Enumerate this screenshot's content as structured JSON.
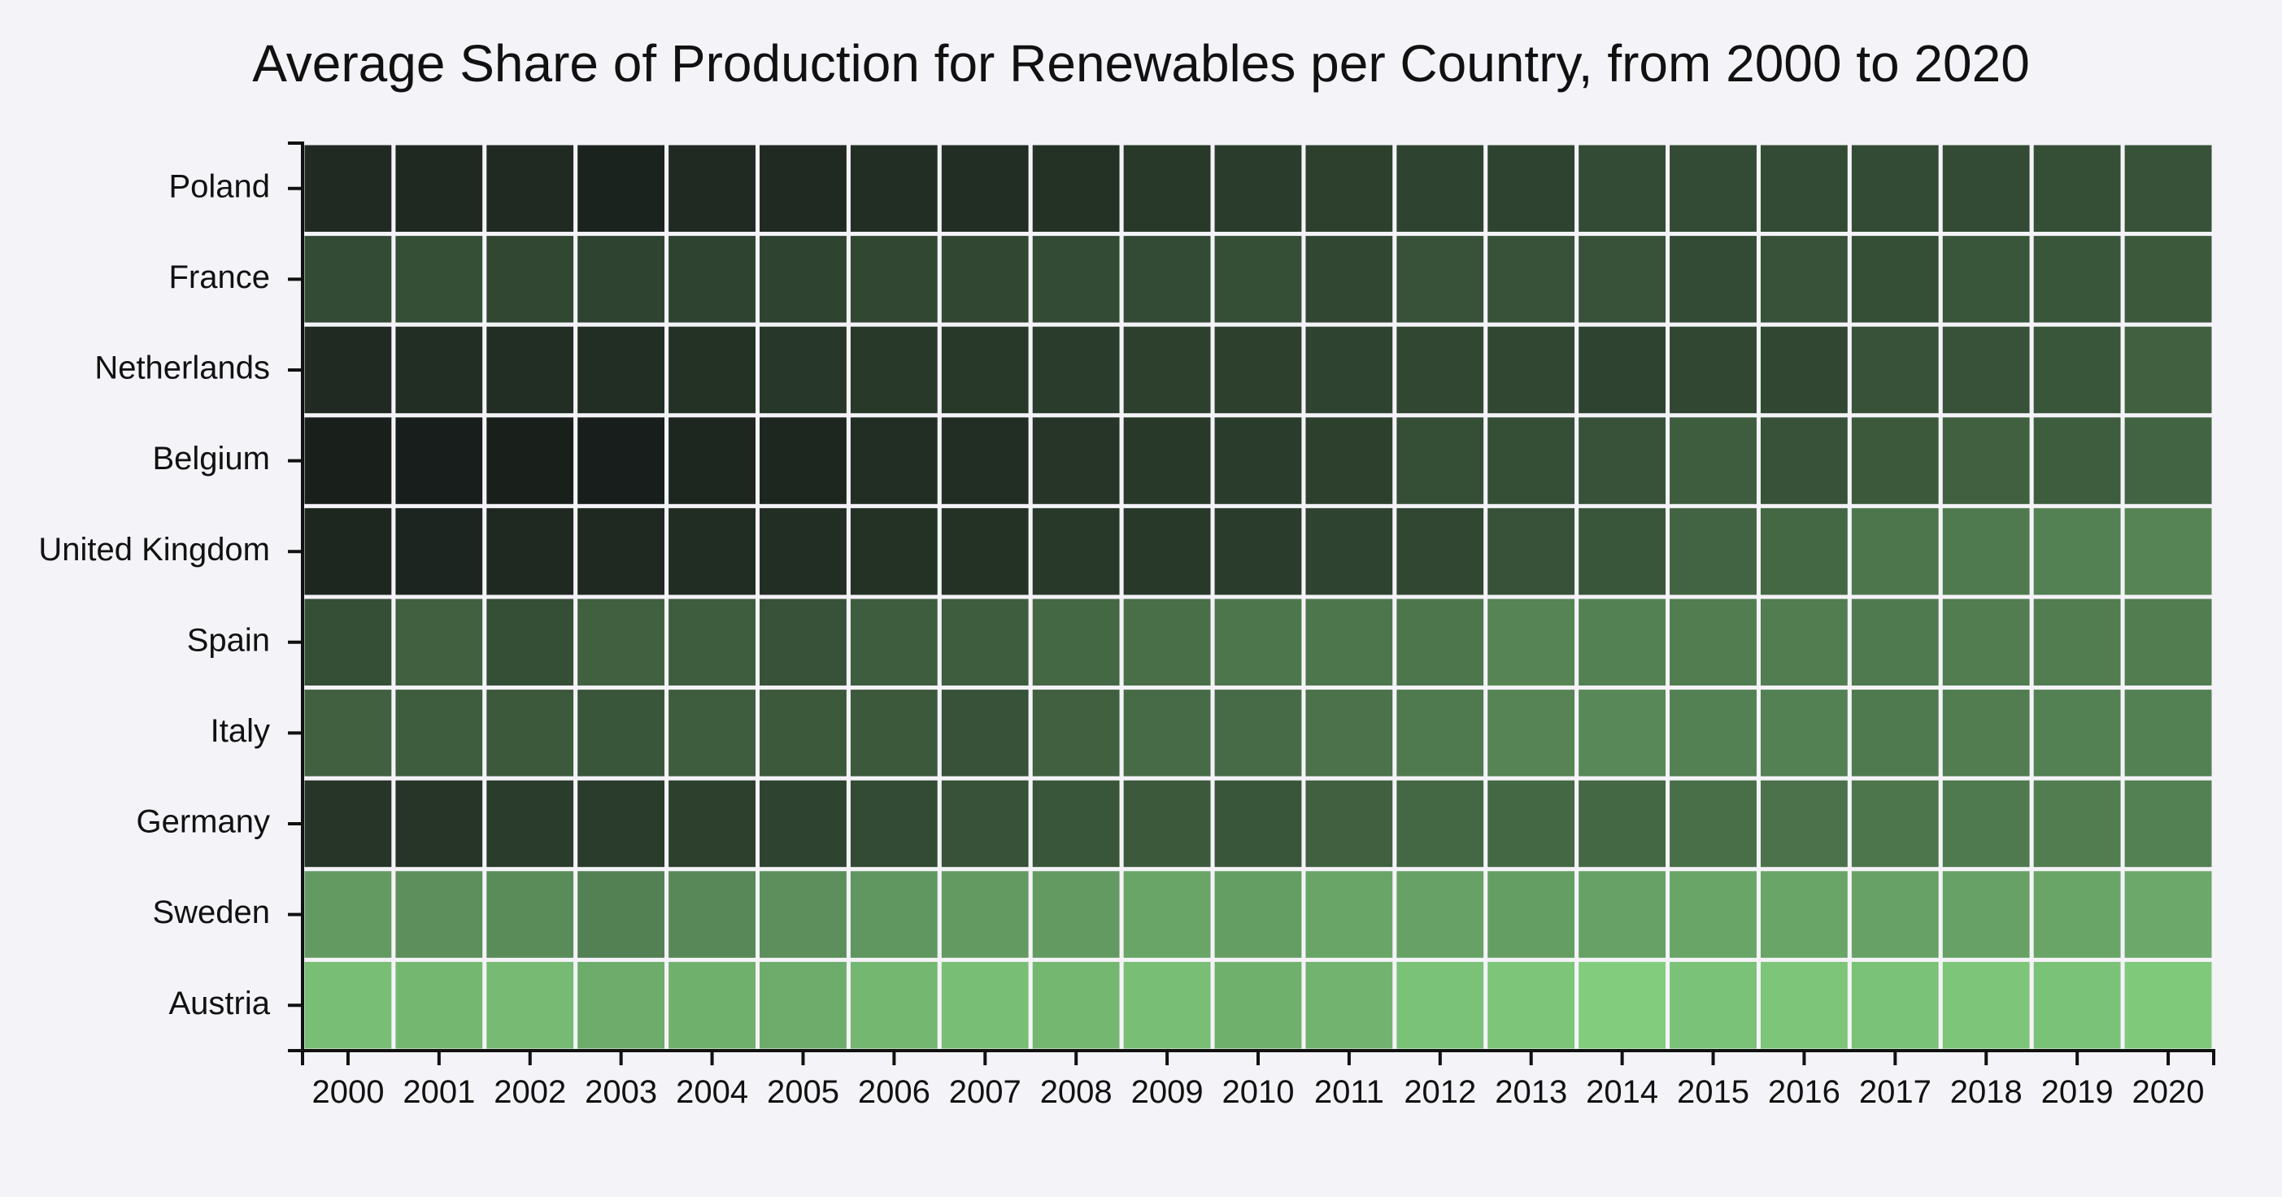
{
  "chart_data": {
    "type": "heatmap",
    "title": "Average Share of Production for Renewables per Country, from 2000 to 2020",
    "xlabel": "",
    "ylabel": "",
    "x": [
      "2000",
      "2001",
      "2002",
      "2003",
      "2004",
      "2005",
      "2006",
      "2007",
      "2008",
      "2009",
      "2010",
      "2011",
      "2012",
      "2013",
      "2014",
      "2015",
      "2016",
      "2017",
      "2018",
      "2019",
      "2020"
    ],
    "y": [
      "Poland",
      "France",
      "Netherlands",
      "Belgium",
      "United Kingdom",
      "Spain",
      "Italy",
      "Germany",
      "Sweden",
      "Austria"
    ],
    "color_scale": {
      "low": "#171c1a",
      "high": "#83d07f"
    },
    "values": [
      [
        0.08,
        0.07,
        0.08,
        0.04,
        0.08,
        0.08,
        0.1,
        0.1,
        0.12,
        0.16,
        0.18,
        0.2,
        0.22,
        0.22,
        0.26,
        0.26,
        0.26,
        0.26,
        0.26,
        0.28,
        0.3
      ],
      [
        0.26,
        0.28,
        0.24,
        0.22,
        0.22,
        0.22,
        0.24,
        0.24,
        0.26,
        0.26,
        0.28,
        0.24,
        0.3,
        0.3,
        0.3,
        0.26,
        0.3,
        0.28,
        0.32,
        0.32,
        0.34
      ],
      [
        0.08,
        0.1,
        0.1,
        0.1,
        0.12,
        0.15,
        0.16,
        0.16,
        0.18,
        0.2,
        0.2,
        0.22,
        0.24,
        0.24,
        0.22,
        0.24,
        0.24,
        0.3,
        0.3,
        0.32,
        0.38
      ],
      [
        0.02,
        0.01,
        0.02,
        0.01,
        0.06,
        0.06,
        0.1,
        0.1,
        0.14,
        0.16,
        0.18,
        0.2,
        0.28,
        0.28,
        0.3,
        0.36,
        0.3,
        0.34,
        0.38,
        0.36,
        0.4
      ],
      [
        0.06,
        0.05,
        0.07,
        0.07,
        0.09,
        0.1,
        0.12,
        0.12,
        0.16,
        0.16,
        0.18,
        0.22,
        0.24,
        0.3,
        0.32,
        0.4,
        0.42,
        0.5,
        0.52,
        0.56,
        0.58
      ]
    ],
    "values_rest": [
      [
        0.28,
        0.38,
        0.28,
        0.38,
        0.36,
        0.3,
        0.36,
        0.36,
        0.42,
        0.46,
        0.5,
        0.5,
        0.5,
        0.58,
        0.56,
        0.54,
        0.54,
        0.52,
        0.54,
        0.54,
        0.54
      ],
      [
        0.38,
        0.36,
        0.34,
        0.32,
        0.36,
        0.34,
        0.34,
        0.3,
        0.38,
        0.44,
        0.44,
        0.48,
        0.52,
        0.58,
        0.6,
        0.56,
        0.56,
        0.52,
        0.54,
        0.56,
        0.56
      ],
      [
        0.14,
        0.14,
        0.18,
        0.18,
        0.2,
        0.22,
        0.26,
        0.3,
        0.32,
        0.34,
        0.32,
        0.38,
        0.42,
        0.42,
        0.42,
        0.46,
        0.48,
        0.5,
        0.52,
        0.54,
        0.56
      ],
      [
        0.7,
        0.64,
        0.62,
        0.56,
        0.6,
        0.64,
        0.68,
        0.7,
        0.7,
        0.76,
        0.72,
        0.76,
        0.74,
        0.72,
        0.74,
        0.76,
        0.76,
        0.74,
        0.74,
        0.76,
        0.78
      ],
      [
        0.9,
        0.86,
        0.88,
        0.8,
        0.82,
        0.8,
        0.86,
        0.9,
        0.86,
        0.9,
        0.82,
        0.84,
        0.92,
        0.94,
        0.98,
        0.92,
        0.94,
        0.92,
        0.94,
        0.92,
        0.96
      ]
    ]
  }
}
